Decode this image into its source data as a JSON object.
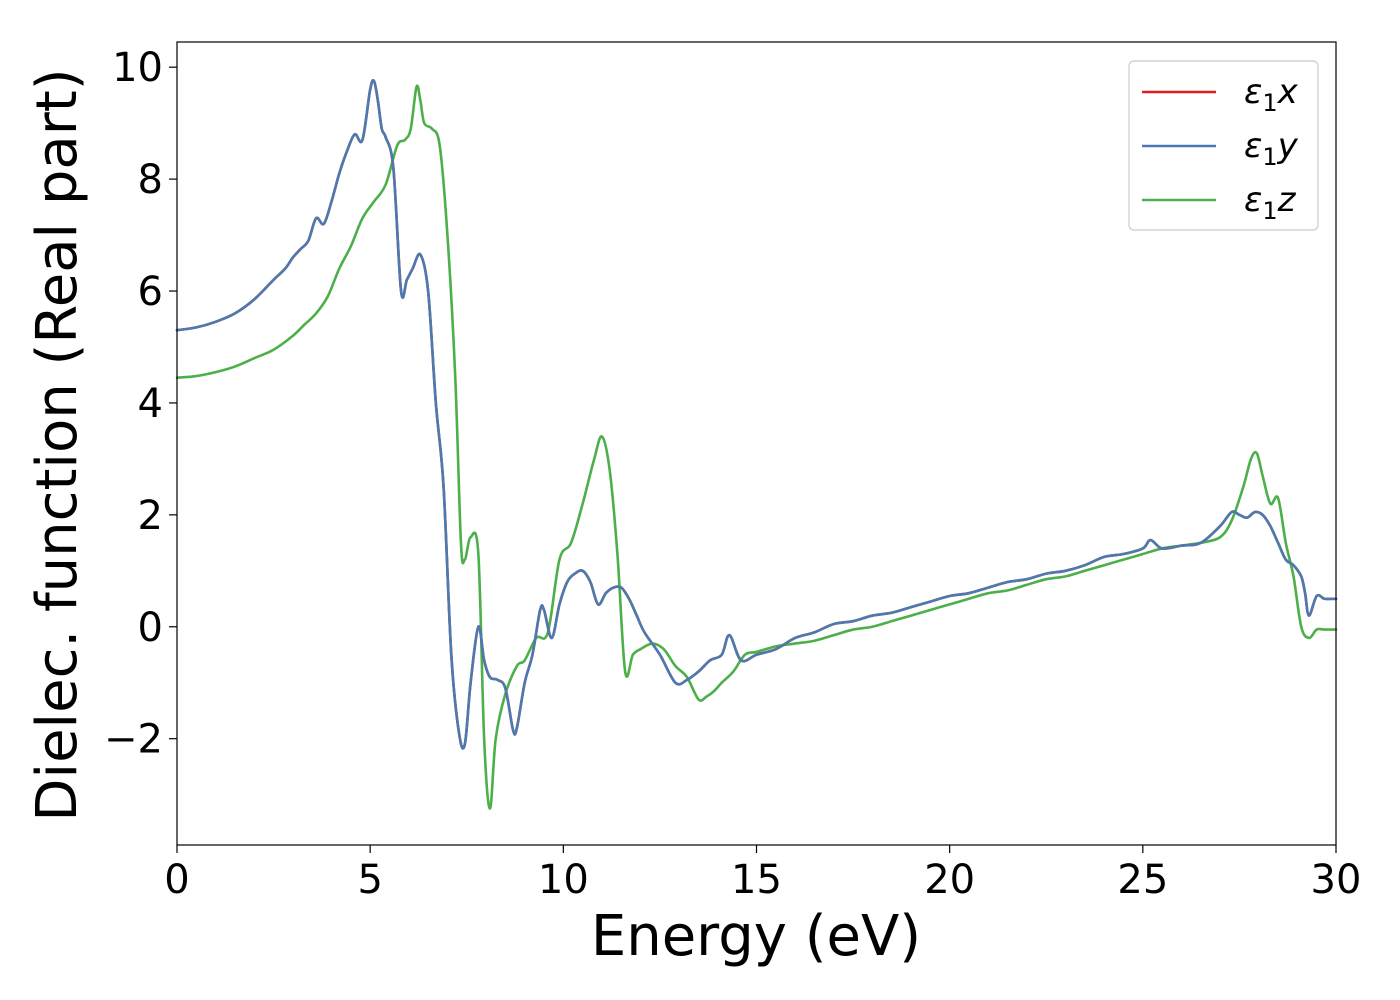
{
  "chart_data": {
    "type": "line",
    "title": "",
    "xlabel": "Energy (eV)",
    "ylabel": "Dielec. function (Real part)",
    "xlim": [
      0,
      30
    ],
    "ylim": [
      -3.9,
      10.45
    ],
    "xticks": [
      0,
      5,
      10,
      15,
      20,
      25,
      30
    ],
    "xtick_labels": [
      "0",
      "5",
      "10",
      "15",
      "20",
      "25",
      "30"
    ],
    "yticks": [
      -2,
      0,
      2,
      4,
      6,
      8,
      10
    ],
    "ytick_labels": [
      "−2",
      "0",
      "2",
      "4",
      "6",
      "8",
      "10"
    ],
    "grid": false,
    "legend_position": "top-right",
    "series": [
      {
        "name": "ε₁x",
        "name_base": "ε",
        "name_sub": "1",
        "name_suffix": "x",
        "color": "#e41a1c",
        "x": [
          0,
          0.5,
          1,
          1.5,
          2,
          2.5,
          2.8,
          3,
          3.2,
          3.4,
          3.6,
          3.8,
          4,
          4.2,
          4.4,
          4.6,
          4.8,
          5,
          5.1,
          5.2,
          5.3,
          5.4,
          5.6,
          5.8,
          5.95,
          6.1,
          6.3,
          6.5,
          6.7,
          6.9,
          7.1,
          7.3,
          7.45,
          7.6,
          7.8,
          7.95,
          8.1,
          8.3,
          8.5,
          8.7,
          8.8,
          9,
          9.2,
          9.4,
          9.5,
          9.7,
          9.9,
          10.1,
          10.3,
          10.5,
          10.7,
          10.9,
          11.1,
          11.3,
          11.5,
          11.7,
          11.9,
          12.1,
          12.5,
          12.9,
          13.2,
          13.5,
          13.8,
          14.1,
          14.3,
          14.6,
          15,
          15.5,
          16,
          16.5,
          17,
          17.5,
          18,
          18.5,
          19,
          19.5,
          20,
          20.5,
          21,
          21.5,
          22,
          22.5,
          23,
          23.5,
          24,
          24.5,
          25,
          25.2,
          25.5,
          26,
          26.5,
          27,
          27.3,
          27.5,
          27.7,
          27.9,
          28.1,
          28.3,
          28.5,
          28.7,
          28.9,
          29.1,
          29.2,
          29.3,
          29.5,
          29.7,
          29.9,
          30
        ],
        "y": [
          5.3,
          5.35,
          5.45,
          5.6,
          5.85,
          6.2,
          6.4,
          6.6,
          6.75,
          6.9,
          7.3,
          7.2,
          7.6,
          8.1,
          8.5,
          8.8,
          8.7,
          9.6,
          9.75,
          9.4,
          8.9,
          8.75,
          8.2,
          6.0,
          6.2,
          6.4,
          6.65,
          6.0,
          4.0,
          2.5,
          -0.5,
          -1.9,
          -2.1,
          -1.0,
          0.0,
          -0.6,
          -0.9,
          -0.95,
          -1.1,
          -1.85,
          -1.8,
          -1.0,
          -0.5,
          0.3,
          0.3,
          -0.2,
          0.4,
          0.8,
          0.95,
          1.0,
          0.8,
          0.4,
          0.6,
          0.7,
          0.7,
          0.5,
          0.2,
          -0.1,
          -0.5,
          -1.0,
          -0.95,
          -0.8,
          -0.6,
          -0.5,
          -0.15,
          -0.6,
          -0.5,
          -0.4,
          -0.2,
          -0.1,
          0.05,
          0.1,
          0.2,
          0.25,
          0.35,
          0.45,
          0.55,
          0.6,
          0.7,
          0.8,
          0.85,
          0.95,
          1.0,
          1.1,
          1.25,
          1.3,
          1.4,
          1.55,
          1.4,
          1.45,
          1.5,
          1.8,
          2.05,
          2.0,
          1.95,
          2.05,
          2.0,
          1.8,
          1.5,
          1.2,
          1.1,
          0.9,
          0.6,
          0.2,
          0.55,
          0.5,
          0.5,
          0.5
        ]
      },
      {
        "name": "ε₁y",
        "name_base": "ε",
        "name_sub": "1",
        "name_suffix": "y",
        "color": "#4a7bb0",
        "x": [
          0,
          0.5,
          1,
          1.5,
          2,
          2.5,
          2.8,
          3,
          3.2,
          3.4,
          3.6,
          3.8,
          4,
          4.2,
          4.4,
          4.6,
          4.8,
          5,
          5.1,
          5.2,
          5.3,
          5.4,
          5.6,
          5.8,
          5.95,
          6.1,
          6.3,
          6.5,
          6.7,
          6.9,
          7.1,
          7.3,
          7.45,
          7.6,
          7.8,
          7.95,
          8.1,
          8.3,
          8.5,
          8.7,
          8.8,
          9,
          9.2,
          9.4,
          9.5,
          9.7,
          9.9,
          10.1,
          10.3,
          10.5,
          10.7,
          10.9,
          11.1,
          11.3,
          11.5,
          11.7,
          11.9,
          12.1,
          12.5,
          12.9,
          13.2,
          13.5,
          13.8,
          14.1,
          14.3,
          14.6,
          15,
          15.5,
          16,
          16.5,
          17,
          17.5,
          18,
          18.5,
          19,
          19.5,
          20,
          20.5,
          21,
          21.5,
          22,
          22.5,
          23,
          23.5,
          24,
          24.5,
          25,
          25.2,
          25.5,
          26,
          26.5,
          27,
          27.3,
          27.5,
          27.7,
          27.9,
          28.1,
          28.3,
          28.5,
          28.7,
          28.9,
          29.1,
          29.2,
          29.3,
          29.5,
          29.7,
          29.9,
          30
        ],
        "y": [
          5.3,
          5.35,
          5.45,
          5.6,
          5.85,
          6.2,
          6.4,
          6.6,
          6.75,
          6.9,
          7.3,
          7.2,
          7.6,
          8.1,
          8.5,
          8.8,
          8.7,
          9.6,
          9.75,
          9.4,
          8.9,
          8.75,
          8.2,
          6.0,
          6.2,
          6.4,
          6.65,
          6.0,
          4.0,
          2.5,
          -0.5,
          -1.9,
          -2.1,
          -1.0,
          0.0,
          -0.6,
          -0.9,
          -0.95,
          -1.1,
          -1.85,
          -1.8,
          -1.0,
          -0.5,
          0.3,
          0.3,
          -0.2,
          0.4,
          0.8,
          0.95,
          1.0,
          0.8,
          0.4,
          0.6,
          0.7,
          0.7,
          0.5,
          0.2,
          -0.1,
          -0.5,
          -1.0,
          -0.95,
          -0.8,
          -0.6,
          -0.5,
          -0.15,
          -0.6,
          -0.5,
          -0.4,
          -0.2,
          -0.1,
          0.05,
          0.1,
          0.2,
          0.25,
          0.35,
          0.45,
          0.55,
          0.6,
          0.7,
          0.8,
          0.85,
          0.95,
          1.0,
          1.1,
          1.25,
          1.3,
          1.4,
          1.55,
          1.4,
          1.45,
          1.5,
          1.8,
          2.05,
          2.0,
          1.95,
          2.05,
          2.0,
          1.8,
          1.5,
          1.2,
          1.1,
          0.9,
          0.6,
          0.2,
          0.55,
          0.5,
          0.5,
          0.5
        ]
      },
      {
        "name": "ε₁z",
        "name_base": "ε",
        "name_sub": "1",
        "name_suffix": "z",
        "color": "#4daf4a",
        "x": [
          0,
          0.5,
          1,
          1.5,
          2,
          2.5,
          3,
          3.3,
          3.6,
          3.9,
          4.2,
          4.5,
          4.8,
          5.1,
          5.4,
          5.7,
          5.9,
          6.05,
          6.2,
          6.3,
          6.4,
          6.6,
          6.8,
          7.0,
          7.2,
          7.35,
          7.45,
          7.6,
          7.8,
          7.95,
          8.1,
          8.25,
          8.5,
          8.8,
          9.0,
          9.3,
          9.6,
          9.9,
          10.2,
          10.5,
          10.8,
          11.0,
          11.2,
          11.4,
          11.6,
          11.8,
          12.0,
          12.3,
          12.6,
          12.9,
          13.2,
          13.5,
          13.7,
          13.9,
          14.1,
          14.4,
          14.7,
          15.0,
          15.5,
          16.0,
          16.5,
          17.0,
          17.5,
          18,
          18.5,
          19,
          19.5,
          20,
          20.5,
          21,
          21.5,
          22,
          22.5,
          23,
          23.5,
          24,
          24.5,
          25,
          25.5,
          26,
          26.5,
          27,
          27.3,
          27.6,
          27.8,
          27.95,
          28.1,
          28.3,
          28.5,
          28.7,
          28.9,
          29.1,
          29.3,
          29.5,
          29.7,
          30
        ],
        "y": [
          4.45,
          4.48,
          4.55,
          4.65,
          4.8,
          4.95,
          5.2,
          5.4,
          5.6,
          5.9,
          6.4,
          6.8,
          7.3,
          7.6,
          7.9,
          8.6,
          8.7,
          8.9,
          9.65,
          9.4,
          9.0,
          8.9,
          8.6,
          7.0,
          4.5,
          1.5,
          1.2,
          1.6,
          1.3,
          -2.0,
          -3.25,
          -2.0,
          -1.2,
          -0.7,
          -0.6,
          -0.2,
          -0.1,
          1.2,
          1.5,
          2.2,
          3.0,
          3.4,
          2.8,
          1.3,
          -0.8,
          -0.5,
          -0.4,
          -0.3,
          -0.4,
          -0.7,
          -0.9,
          -1.3,
          -1.25,
          -1.15,
          -1.0,
          -0.8,
          -0.5,
          -0.45,
          -0.35,
          -0.3,
          -0.25,
          -0.15,
          -0.05,
          0.0,
          0.1,
          0.2,
          0.3,
          0.4,
          0.5,
          0.6,
          0.65,
          0.75,
          0.85,
          0.9,
          1.0,
          1.1,
          1.2,
          1.3,
          1.4,
          1.45,
          1.5,
          1.6,
          1.9,
          2.5,
          3.0,
          3.1,
          2.7,
          2.2,
          2.3,
          1.5,
          0.9,
          0.0,
          -0.2,
          -0.05,
          -0.05,
          -0.05
        ]
      }
    ]
  }
}
